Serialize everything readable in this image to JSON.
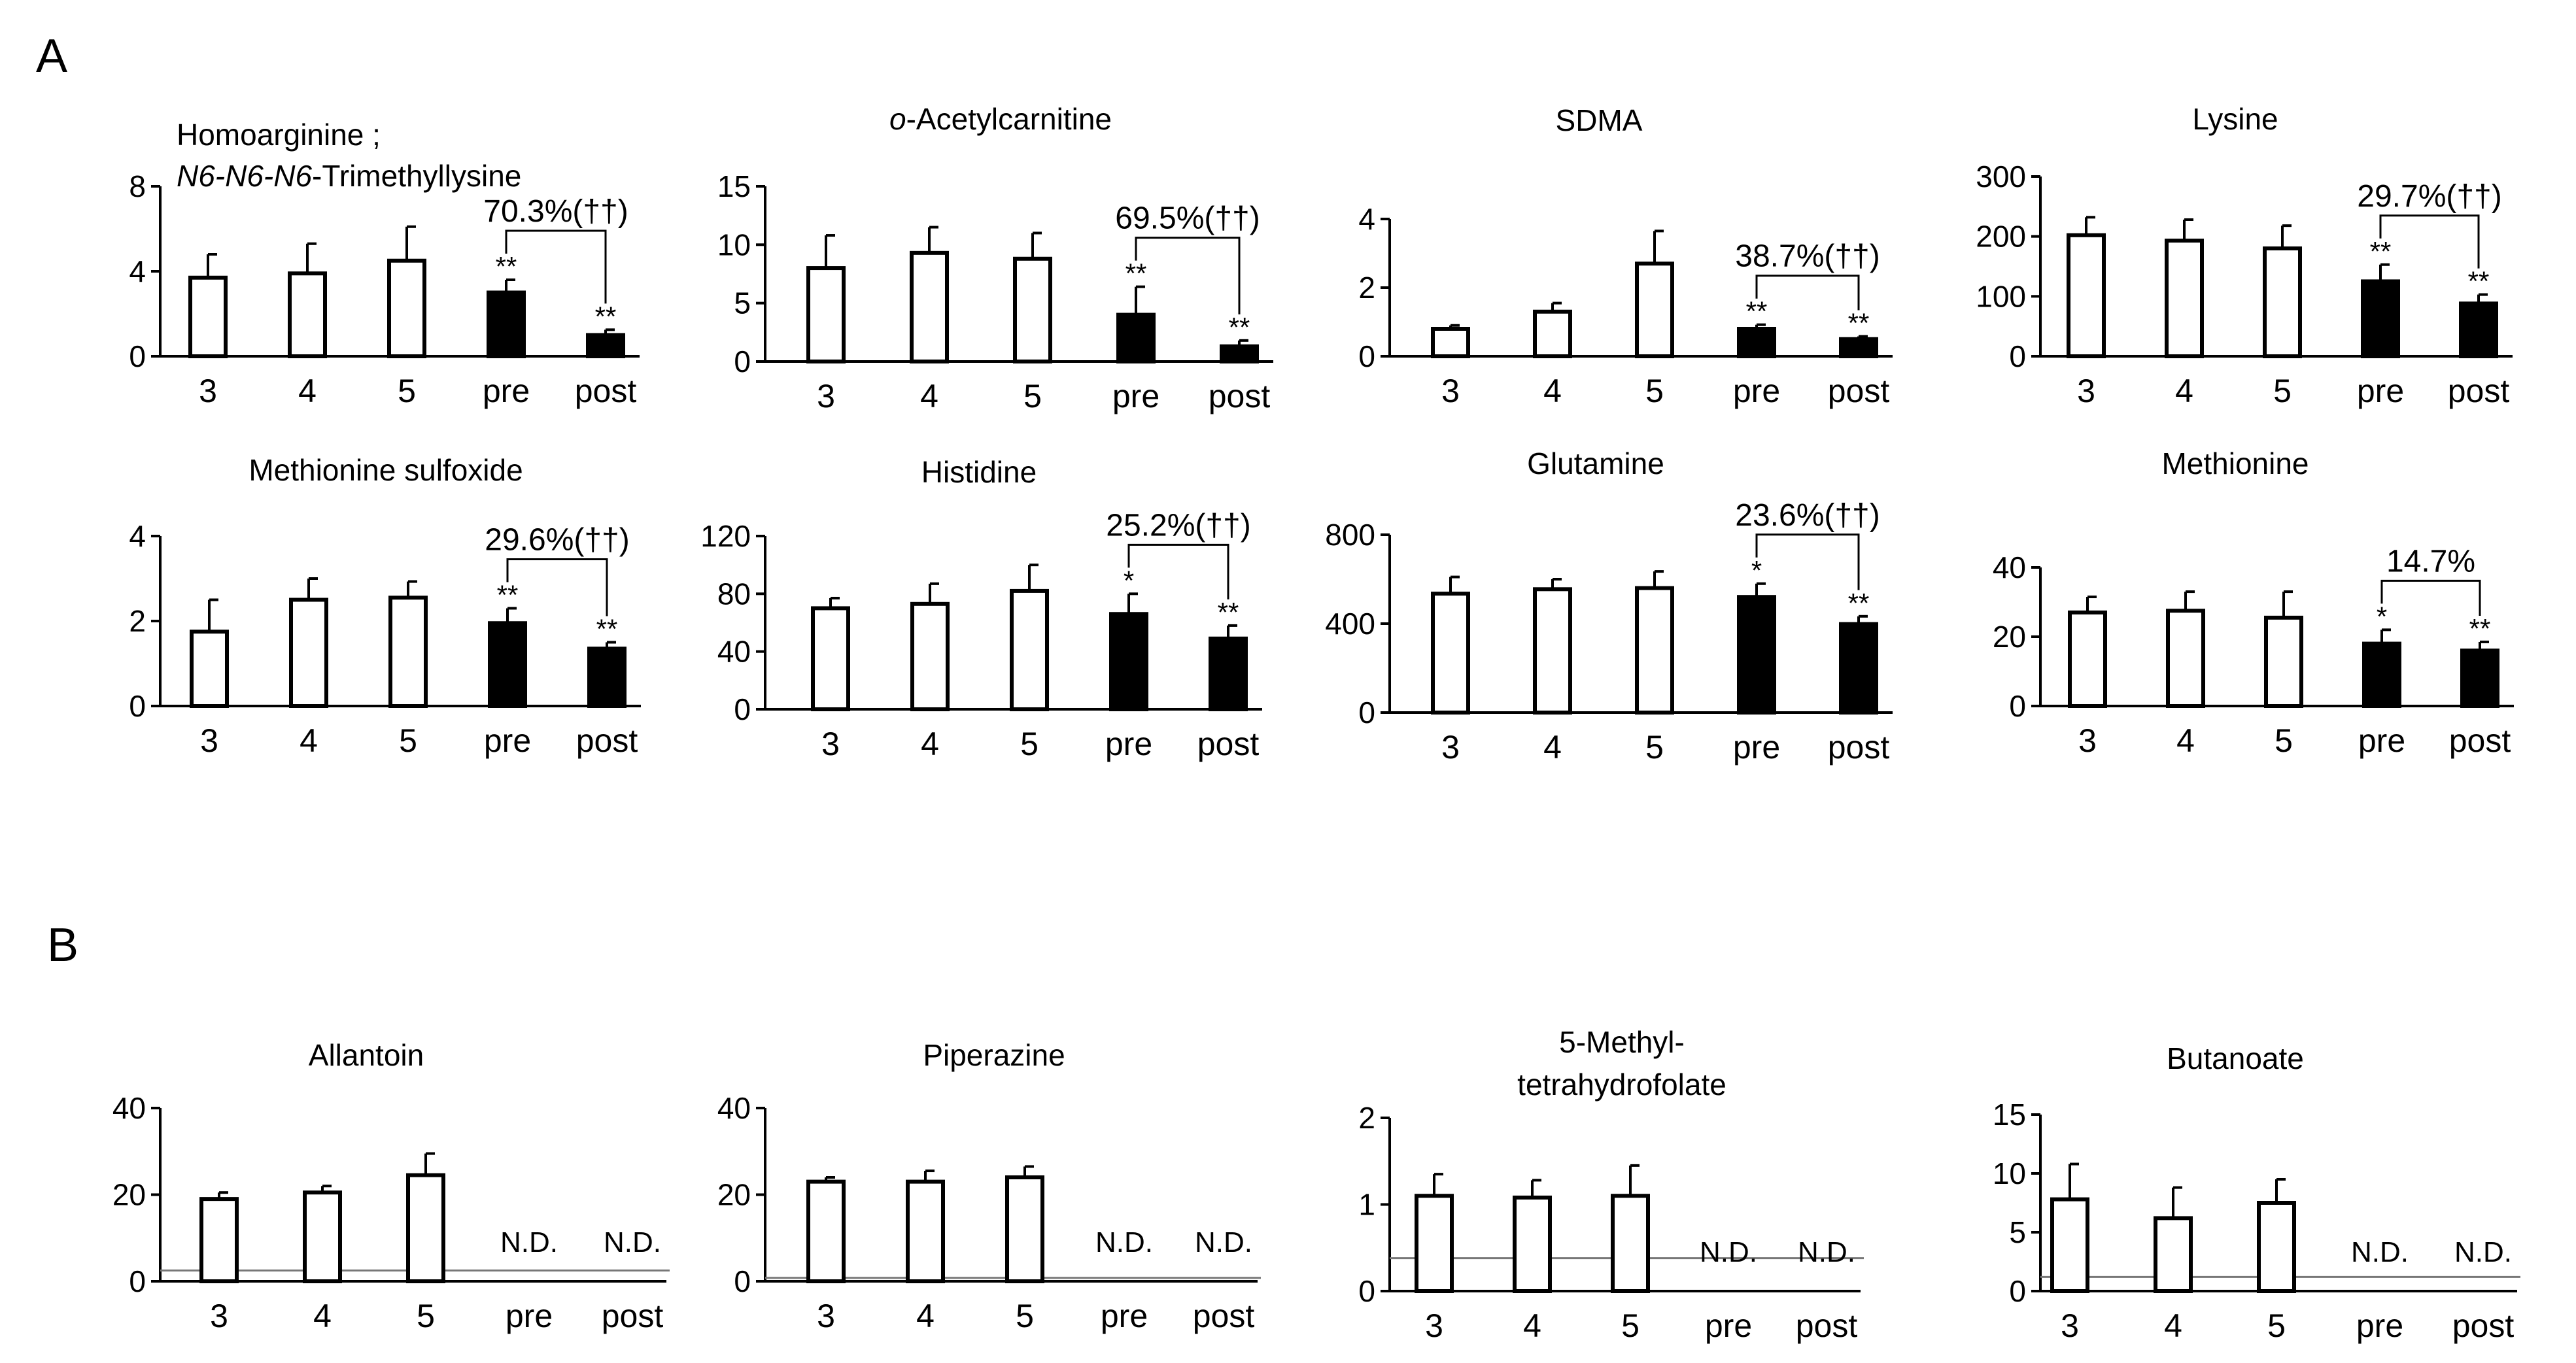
{
  "panel_labels": [
    "A",
    "B"
  ],
  "chart_data": [
    {
      "type": "bar",
      "panel": "A",
      "title_lines": [
        [
          {
            "t": "Homoarginine ;"
          }
        ],
        [
          {
            "t": "N6-N6-N6",
            "i": true
          },
          {
            "t": "-Trimethyllysine"
          }
        ]
      ],
      "categories": [
        "3",
        "4",
        "5",
        "pre",
        "post"
      ],
      "ylim": [
        0,
        8
      ],
      "yticks": [
        "0",
        "4",
        "8"
      ],
      "values": [
        3.7,
        3.9,
        4.5,
        3.0,
        1.0
      ],
      "errors": [
        1.1,
        1.4,
        1.6,
        0.6,
        0.25
      ],
      "filled": [
        false,
        false,
        false,
        true,
        true
      ],
      "sig": [
        "",
        "",
        "",
        "**",
        "**"
      ],
      "comparison": "70.3%(††)"
    },
    {
      "type": "bar",
      "panel": "A",
      "title_lines": [
        [
          {
            "t": "o",
            "i": true
          },
          {
            "t": "-Acetylcarnitine"
          }
        ]
      ],
      "categories": [
        "3",
        "4",
        "5",
        "pre",
        "post"
      ],
      "ylim": [
        0,
        15
      ],
      "yticks": [
        "0",
        "5",
        "10",
        "15"
      ],
      "values": [
        8.0,
        9.3,
        8.8,
        4.0,
        1.3
      ],
      "errors": [
        2.8,
        2.2,
        2.2,
        2.4,
        0.5
      ],
      "filled": [
        false,
        false,
        false,
        true,
        true
      ],
      "sig": [
        "",
        "",
        "",
        "**",
        "**"
      ],
      "comparison": "69.5%(††)"
    },
    {
      "type": "bar",
      "panel": "A",
      "title_lines": [
        [
          {
            "t": "SDMA"
          }
        ]
      ],
      "categories": [
        "3",
        "4",
        "5",
        "pre",
        "post"
      ],
      "ylim": [
        0,
        4
      ],
      "yticks": [
        "0",
        "2",
        "4"
      ],
      "values": [
        0.8,
        1.3,
        2.7,
        0.8,
        0.5
      ],
      "errors": [
        0.1,
        0.25,
        0.95,
        0.12,
        0.08
      ],
      "filled": [
        false,
        false,
        false,
        true,
        true
      ],
      "sig": [
        "",
        "",
        "",
        "**",
        "**"
      ],
      "comparison": "38.7%(††)"
    },
    {
      "type": "bar",
      "panel": "A",
      "title_lines": [
        [
          {
            "t": "Lysine"
          }
        ]
      ],
      "categories": [
        "3",
        "4",
        "5",
        "pre",
        "post"
      ],
      "ylim": [
        0,
        300
      ],
      "yticks": [
        "0",
        "100",
        "200",
        "300"
      ],
      "values": [
        202,
        193,
        180,
        125,
        88
      ],
      "errors": [
        30,
        35,
        38,
        28,
        15
      ],
      "filled": [
        false,
        false,
        false,
        true,
        true
      ],
      "sig": [
        "",
        "",
        "",
        "**",
        "**"
      ],
      "comparison": "29.7%(††)"
    },
    {
      "type": "bar",
      "panel": "A",
      "title_lines": [
        [
          {
            "t": "Methionine sulfoxide"
          }
        ]
      ],
      "categories": [
        "3",
        "4",
        "5",
        "pre",
        "post"
      ],
      "ylim": [
        0,
        4
      ],
      "yticks": [
        "0",
        "2",
        "4"
      ],
      "values": [
        1.75,
        2.5,
        2.55,
        1.95,
        1.35
      ],
      "errors": [
        0.75,
        0.5,
        0.38,
        0.35,
        0.15
      ],
      "filled": [
        false,
        false,
        false,
        true,
        true
      ],
      "sig": [
        "",
        "",
        "",
        "**",
        "**"
      ],
      "comparison": "29.6%(††)"
    },
    {
      "type": "bar",
      "panel": "A",
      "title_lines": [
        [
          {
            "t": "Histidine"
          }
        ]
      ],
      "categories": [
        "3",
        "4",
        "5",
        "pre",
        "post"
      ],
      "ylim": [
        0,
        120
      ],
      "yticks": [
        "0",
        "40",
        "80",
        "120"
      ],
      "values": [
        70,
        73,
        82,
        66,
        49
      ],
      "errors": [
        7,
        14,
        18,
        14,
        9
      ],
      "filled": [
        false,
        false,
        false,
        true,
        true
      ],
      "sig": [
        "",
        "",
        "",
        "*",
        "**"
      ],
      "comparison": "25.2%(††)"
    },
    {
      "type": "bar",
      "panel": "A",
      "title_lines": [
        [
          {
            "t": "Glutamine"
          }
        ]
      ],
      "categories": [
        "3",
        "4",
        "5",
        "pre",
        "post"
      ],
      "ylim": [
        0,
        800
      ],
      "yticks": [
        "0",
        "400",
        "800"
      ],
      "values": [
        535,
        555,
        560,
        520,
        398
      ],
      "errors": [
        75,
        45,
        75,
        60,
        35
      ],
      "filled": [
        false,
        false,
        false,
        true,
        true
      ],
      "sig": [
        "",
        "",
        "",
        "*",
        "**"
      ],
      "comparison": "23.6%(††)"
    },
    {
      "type": "bar",
      "panel": "A",
      "title_lines": [
        [
          {
            "t": "Methionine"
          }
        ]
      ],
      "categories": [
        "3",
        "4",
        "5",
        "pre",
        "post"
      ],
      "ylim": [
        0,
        40
      ],
      "yticks": [
        "0",
        "20",
        "40"
      ],
      "values": [
        27,
        27.5,
        25.5,
        18,
        16
      ],
      "errors": [
        4.5,
        5.5,
        7.5,
        4,
        2.5
      ],
      "filled": [
        false,
        false,
        false,
        true,
        true
      ],
      "sig": [
        "",
        "",
        "",
        "*",
        "**"
      ],
      "comparison": "14.7%"
    },
    {
      "type": "bar",
      "panel": "B",
      "title_lines": [
        [
          {
            "t": "Allantoin"
          }
        ]
      ],
      "categories": [
        "3",
        "4",
        "5",
        "pre",
        "post"
      ],
      "ylim": [
        0,
        40
      ],
      "yticks": [
        "0",
        "20",
        "40"
      ],
      "values": [
        19,
        20.5,
        24.5,
        null,
        null
      ],
      "errors": [
        1.5,
        1.5,
        5,
        null,
        null
      ],
      "filled": [
        false,
        false,
        false,
        false,
        false
      ],
      "nd_label": "N.D.",
      "detection_limit": 2.5
    },
    {
      "type": "bar",
      "panel": "B",
      "title_lines": [
        [
          {
            "t": "Piperazine"
          }
        ]
      ],
      "categories": [
        "3",
        "4",
        "5",
        "pre",
        "post"
      ],
      "ylim": [
        0,
        40
      ],
      "yticks": [
        "0",
        "20",
        "40"
      ],
      "values": [
        23,
        23,
        24,
        null,
        null
      ],
      "errors": [
        1,
        2.5,
        2.5,
        null,
        null
      ],
      "filled": [
        false,
        false,
        false,
        false,
        false
      ],
      "nd_label": "N.D.",
      "detection_limit": 0.8
    },
    {
      "type": "bar",
      "panel": "B",
      "title_lines": [
        [
          {
            "t": "5-Methyl-"
          }
        ],
        [
          {
            "t": "tetrahydrofolate"
          }
        ]
      ],
      "categories": [
        "3",
        "4",
        "5",
        "pre",
        "post"
      ],
      "ylim": [
        0,
        2
      ],
      "yticks": [
        "0",
        "1",
        "2"
      ],
      "values": [
        1.1,
        1.08,
        1.1,
        null,
        null
      ],
      "errors": [
        0.25,
        0.2,
        0.35,
        null,
        null
      ],
      "filled": [
        false,
        false,
        false,
        false,
        false
      ],
      "nd_label": "N.D.",
      "detection_limit": 0.38
    },
    {
      "type": "bar",
      "panel": "B",
      "title_lines": [
        [
          {
            "t": "Butanoate"
          }
        ]
      ],
      "categories": [
        "3",
        "4",
        "5",
        "pre",
        "post"
      ],
      "ylim": [
        0,
        15
      ],
      "yticks": [
        "0",
        "5",
        "10",
        "15"
      ],
      "values": [
        7.8,
        6.2,
        7.5,
        null,
        null
      ],
      "errors": [
        3,
        2.6,
        2,
        null,
        null
      ],
      "filled": [
        false,
        false,
        false,
        false,
        false
      ],
      "nd_label": "N.D.",
      "detection_limit": 1.2
    }
  ]
}
